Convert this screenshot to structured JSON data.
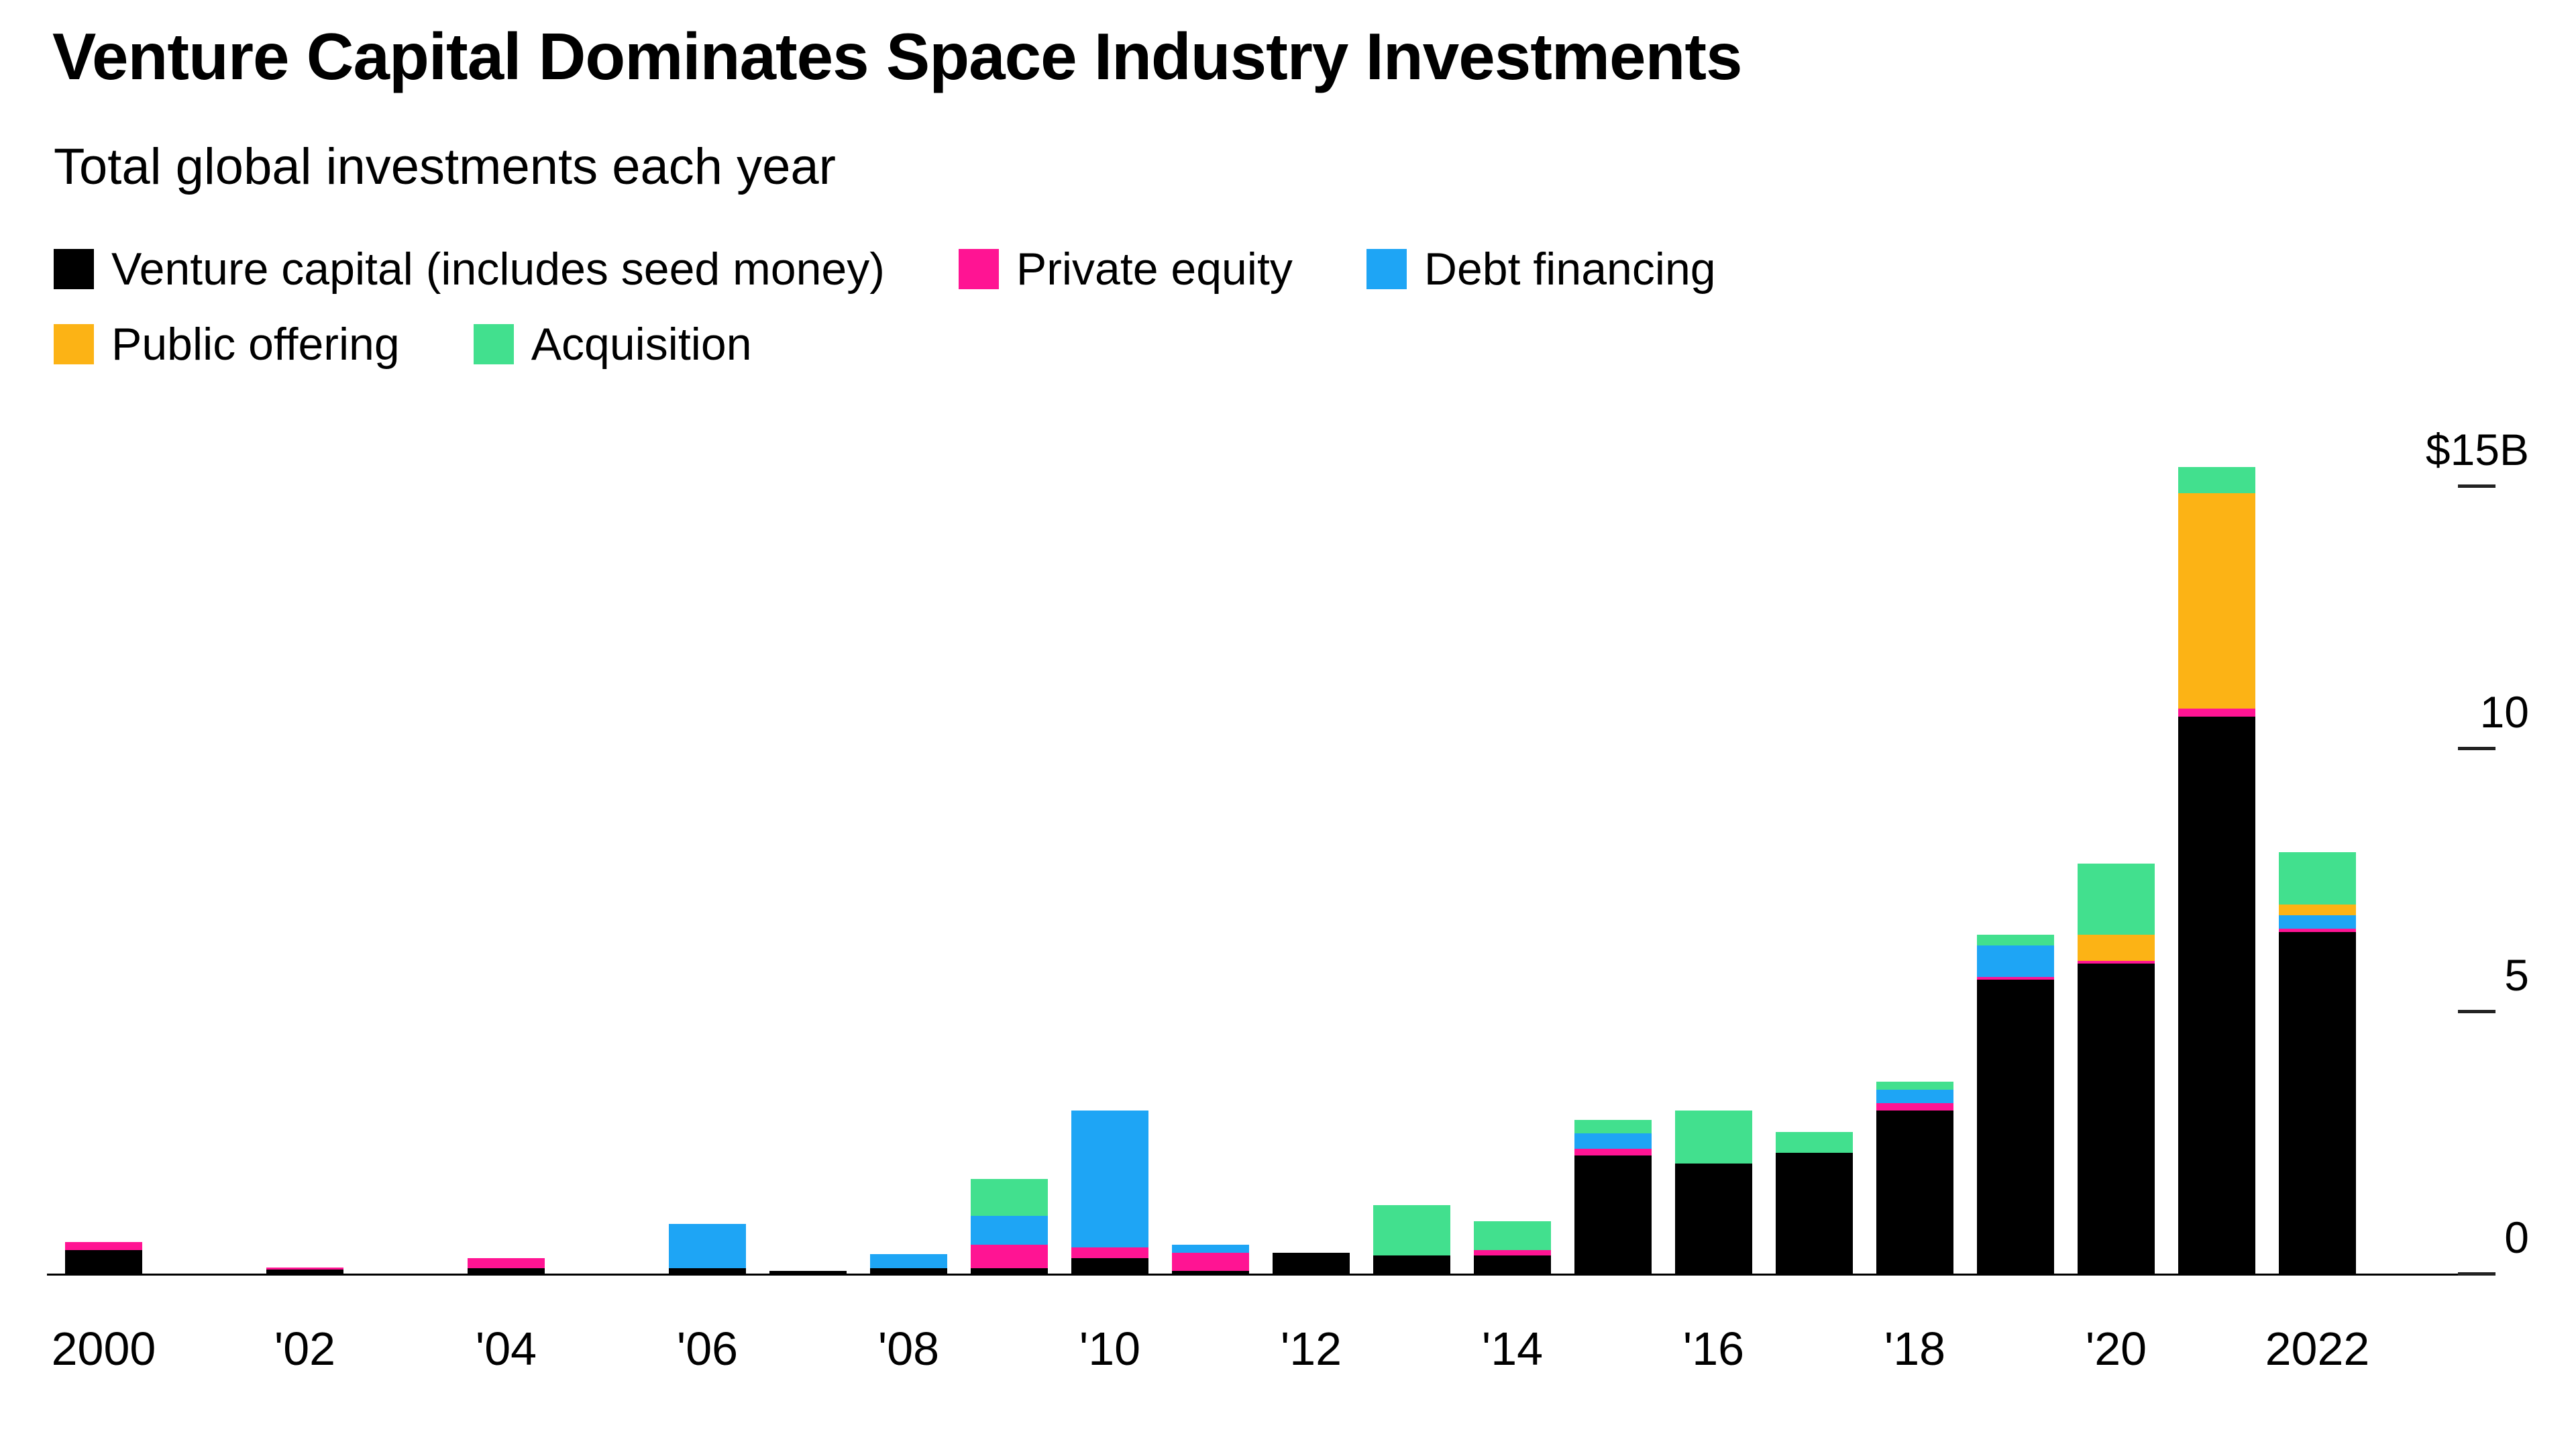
{
  "header": {
    "title": "Venture Capital Dominates Space Industry Investments",
    "subtitle": "Total global investments each year"
  },
  "chart_data": {
    "type": "bar",
    "stacked": true,
    "title": "Venture Capital Dominates Space Industry Investments",
    "subtitle": "Total global investments each year",
    "unit": "billions of US dollars",
    "grid": false,
    "legend_position": "top-left",
    "ylim": [
      0,
      15.6
    ],
    "categories": [
      2000,
      2001,
      2002,
      2003,
      2004,
      2005,
      2006,
      2007,
      2008,
      2009,
      2010,
      2011,
      2012,
      2013,
      2014,
      2015,
      2016,
      2017,
      2018,
      2019,
      2020,
      2021,
      2022
    ],
    "x_tick_labels": [
      "2000",
      "'02",
      "'04",
      "'06",
      "'08",
      "'10",
      "'12",
      "'14",
      "'16",
      "'18",
      "'20",
      "2022"
    ],
    "y_ticks": [
      {
        "value": 15,
        "label": "$15B"
      },
      {
        "value": 10,
        "label": "10"
      },
      {
        "value": 5,
        "label": "5"
      },
      {
        "value": 0,
        "label": "0"
      }
    ],
    "series": [
      {
        "key": "venture-capital",
        "name": "Venture capital (includes seed money)",
        "color": "#000000",
        "values": [
          0.45,
          0,
          0.08,
          0,
          0.1,
          0,
          0.1,
          0.05,
          0.1,
          0.1,
          0.3,
          0.05,
          0.4,
          0.35,
          0.35,
          2.25,
          2.1,
          2.3,
          3.1,
          5.6,
          5.9,
          10.6,
          6.5
        ]
      },
      {
        "key": "private-equity",
        "name": "Private equity",
        "color": "#ff1493",
        "values": [
          0.15,
          0,
          0.04,
          0,
          0.2,
          0,
          0,
          0,
          0,
          0.45,
          0.2,
          0.35,
          0,
          0,
          0.1,
          0.12,
          0,
          0,
          0.15,
          0.05,
          0.05,
          0.15,
          0.07
        ]
      },
      {
        "key": "debt-financing",
        "name": "Debt financing",
        "color": "#1ea5f5",
        "values": [
          0,
          0,
          0,
          0,
          0,
          0,
          0.85,
          0,
          0.27,
          0.55,
          2.6,
          0.15,
          0,
          0,
          0,
          0.3,
          0,
          0,
          0.25,
          0.6,
          0,
          0,
          0.25
        ]
      },
      {
        "key": "public-offering",
        "name": "Public offering",
        "color": "#fcb315",
        "values": [
          0,
          0,
          0,
          0,
          0,
          0,
          0,
          0,
          0,
          0,
          0,
          0,
          0,
          0,
          0,
          0,
          0,
          0,
          0,
          0,
          0.5,
          4.1,
          0.2
        ]
      },
      {
        "key": "acquisition",
        "name": "Acquisition",
        "color": "#42e08e",
        "values": [
          0,
          0,
          0,
          0,
          0,
          0,
          0,
          0,
          0,
          0.7,
          0,
          0,
          0,
          0.95,
          0.55,
          0.25,
          1.0,
          0.4,
          0.15,
          0.2,
          1.35,
          0.5,
          1.0
        ]
      }
    ]
  }
}
